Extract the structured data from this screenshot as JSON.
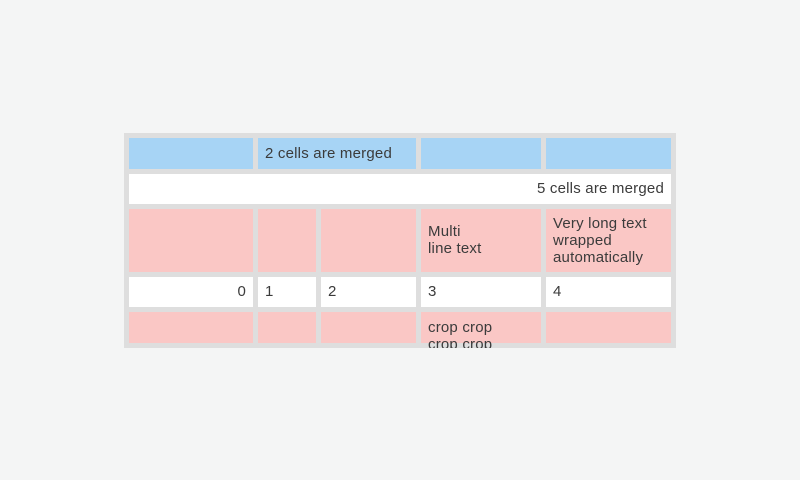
{
  "theme": {
    "page_bg": "#f4f5f5",
    "table_frame": "#dedede",
    "cell_blue": "#a7d4f5",
    "cell_pink": "#fac7c5",
    "cell_white": "#ffffff",
    "text_color": "#3b3b3b"
  },
  "table": {
    "row1": {
      "merged_cell_label": "2 cells are merged"
    },
    "row2": {
      "merged_cell_label": "5 cells are merged"
    },
    "row3": {
      "multiline_cell": "Multi\nline text",
      "wrapped_cell": "Very long text wrapped automatically"
    },
    "row4": {
      "values": [
        "0",
        "1",
        "2",
        "3",
        "4"
      ]
    },
    "row5": {
      "cropped_cell": "crop crop crop crop"
    }
  }
}
